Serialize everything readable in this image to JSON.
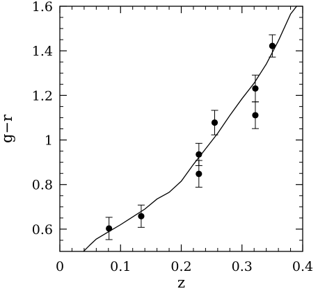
{
  "chart_data": {
    "type": "scatter",
    "xlabel": "z",
    "ylabel": "g−r",
    "xlim": [
      0,
      0.4
    ],
    "ylim": [
      0.5,
      1.6
    ],
    "grid": false,
    "xticks": {
      "major": [
        0,
        0.1,
        0.2,
        0.3,
        0.4
      ],
      "labels": [
        "0",
        "0.1",
        "0.2",
        "0.3",
        "0.4"
      ],
      "minor_step": 0.02
    },
    "yticks": {
      "major": [
        0.6,
        0.8,
        1.0,
        1.2,
        1.4,
        1.6
      ],
      "labels": [
        "0.6",
        "0.8",
        "1",
        "1.2",
        "1.4",
        "1.6"
      ],
      "minor_step": 0.05
    },
    "points": [
      {
        "x": 0.081,
        "y": 0.603,
        "err": 0.05
      },
      {
        "x": 0.134,
        "y": 0.658,
        "err": 0.05
      },
      {
        "x": 0.229,
        "y": 0.935,
        "err": 0.05
      },
      {
        "x": 0.229,
        "y": 0.848,
        "err": 0.06
      },
      {
        "x": 0.255,
        "y": 1.078,
        "err": 0.055
      },
      {
        "x": 0.322,
        "y": 1.231,
        "err": 0.06
      },
      {
        "x": 0.322,
        "y": 1.111,
        "err": 0.06
      },
      {
        "x": 0.35,
        "y": 1.422,
        "err": 0.05
      }
    ],
    "model_curve": {
      "x": [
        0.039,
        0.05,
        0.06,
        0.08,
        0.1,
        0.12,
        0.14,
        0.16,
        0.18,
        0.2,
        0.22,
        0.24,
        0.26,
        0.28,
        0.3,
        0.32,
        0.34,
        0.36,
        0.38,
        0.39
      ],
      "y": [
        0.5,
        0.53,
        0.555,
        0.588,
        0.62,
        0.655,
        0.69,
        0.735,
        0.765,
        0.815,
        0.89,
        0.96,
        1.03,
        1.11,
        1.185,
        1.255,
        1.34,
        1.445,
        1.565,
        1.6
      ]
    }
  },
  "colors": {
    "ink": "#000000",
    "background": "#ffffff"
  }
}
